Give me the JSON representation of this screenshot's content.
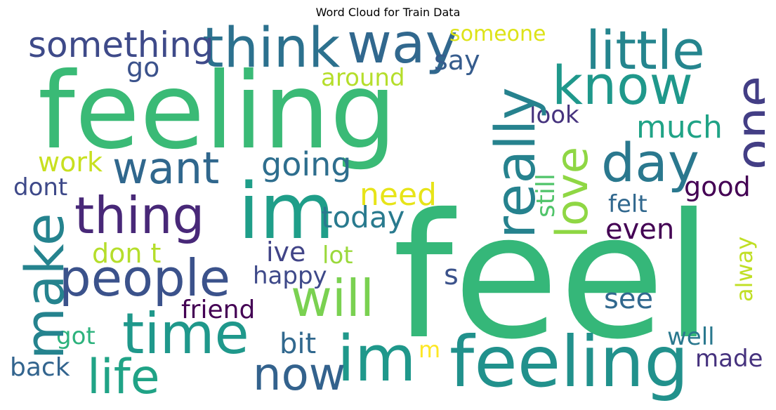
{
  "title": "Word Cloud for Train Data",
  "words": [
    {
      "text": "feel",
      "color": "#35b779"
    },
    {
      "text": "feeling",
      "color": "#3aba76"
    },
    {
      "text": "feeling",
      "color": "#21918c"
    },
    {
      "text": "im",
      "color": "#1f9e89"
    },
    {
      "text": "im",
      "color": "#1f988b"
    },
    {
      "text": "way",
      "color": "#31688e"
    },
    {
      "text": "think",
      "color": "#2c718e"
    },
    {
      "text": "something",
      "color": "#3e4a89"
    },
    {
      "text": "little",
      "color": "#25858e"
    },
    {
      "text": "know",
      "color": "#1f988b"
    },
    {
      "text": "one",
      "color": "#433e85"
    },
    {
      "text": "really",
      "color": "#26828e"
    },
    {
      "text": "day",
      "color": "#2a788e"
    },
    {
      "text": "love",
      "color": "#8fd744"
    },
    {
      "text": "thing",
      "color": "#482878"
    },
    {
      "text": "want",
      "color": "#30678d"
    },
    {
      "text": "make",
      "color": "#25838e"
    },
    {
      "text": "people",
      "color": "#3b528b"
    },
    {
      "text": "will",
      "color": "#7ad151"
    },
    {
      "text": "time",
      "color": "#1f988b"
    },
    {
      "text": "life",
      "color": "#20a386"
    },
    {
      "text": "now",
      "color": "#33628d"
    },
    {
      "text": "someone",
      "color": "#dde318"
    },
    {
      "text": "say",
      "color": "#365c8d"
    },
    {
      "text": "go",
      "color": "#3b528b"
    },
    {
      "text": "around",
      "color": "#b5de2b"
    },
    {
      "text": "look",
      "color": "#46337e"
    },
    {
      "text": "much",
      "color": "#20a386"
    },
    {
      "text": "going",
      "color": "#2e6e8e"
    },
    {
      "text": "work",
      "color": "#c8e020"
    },
    {
      "text": "dont",
      "color": "#3e4989"
    },
    {
      "text": "need",
      "color": "#e7e419"
    },
    {
      "text": "good",
      "color": "#440154"
    },
    {
      "text": "still",
      "color": "#50c46a"
    },
    {
      "text": "felt",
      "color": "#31688e"
    },
    {
      "text": "even",
      "color": "#440154"
    },
    {
      "text": "today",
      "color": "#297a8e"
    },
    {
      "text": "don t",
      "color": "#b5de2b"
    },
    {
      "text": "ive",
      "color": "#414487"
    },
    {
      "text": "lot",
      "color": "#9bd93c"
    },
    {
      "text": "s",
      "color": "#3b528b"
    },
    {
      "text": "alway",
      "color": "#c0df25"
    },
    {
      "text": "happy",
      "color": "#3e4989"
    },
    {
      "text": "see",
      "color": "#31688e"
    },
    {
      "text": "friend",
      "color": "#440154"
    },
    {
      "text": "got",
      "color": "#2db27d"
    },
    {
      "text": "bit",
      "color": "#31688e"
    },
    {
      "text": "m",
      "color": "#fde725"
    },
    {
      "text": "well",
      "color": "#2a788e"
    },
    {
      "text": "back",
      "color": "#32648e"
    },
    {
      "text": "made",
      "color": "#46327e"
    }
  ]
}
